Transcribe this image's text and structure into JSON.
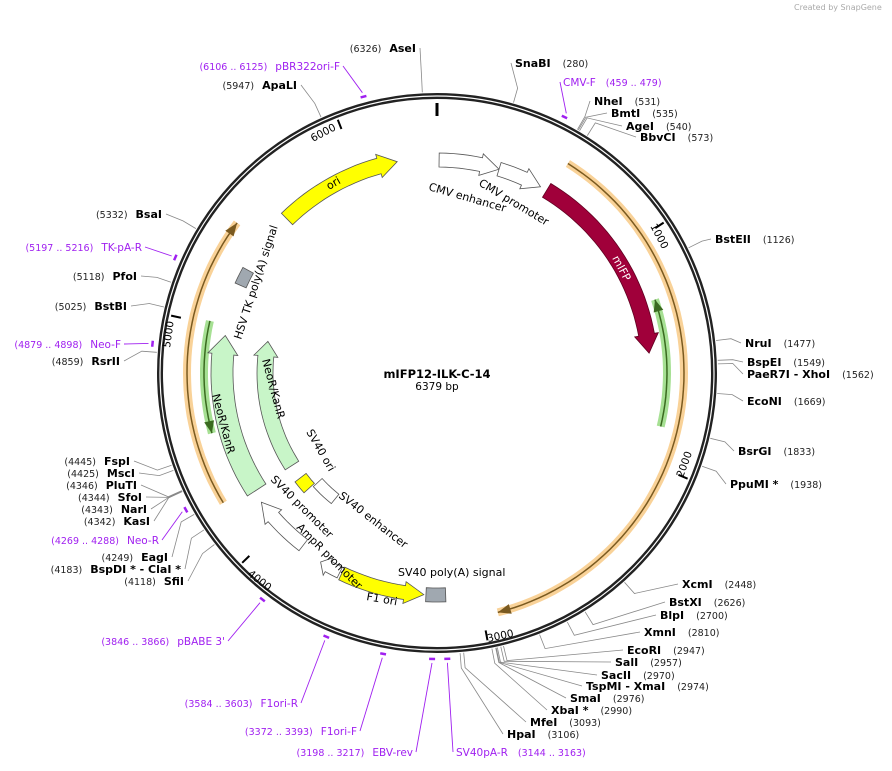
{
  "watermark": "Created by SnapGene",
  "plasmid": {
    "name": "mIFP12-ILK-C-14",
    "length_label": "6379 bp",
    "length": 6379
  },
  "ticks": [
    "1000",
    "2000",
    "3000",
    "4000",
    "5000",
    "6000"
  ],
  "enzymes": [
    {
      "name": "SnaBI",
      "pos": "(280)",
      "bp": 280
    },
    {
      "name": "NheI",
      "pos": "(531)",
      "bp": 531
    },
    {
      "name": "BmtI",
      "pos": "(535)",
      "bp": 535
    },
    {
      "name": "AgeI",
      "pos": "(540)",
      "bp": 540
    },
    {
      "name": "BbvCI",
      "pos": "(573)",
      "bp": 573
    },
    {
      "name": "BstEII",
      "pos": "(1126)",
      "bp": 1126
    },
    {
      "name": "NruI",
      "pos": "(1477)",
      "bp": 1477
    },
    {
      "name": "BspEI",
      "pos": "(1549)",
      "bp": 1549
    },
    {
      "name": "PaeR7I  - XhoI",
      "pos": "(1562)",
      "bp": 1562
    },
    {
      "name": "EcoNI",
      "pos": "(1669)",
      "bp": 1669
    },
    {
      "name": "BsrGI",
      "pos": "(1833)",
      "bp": 1833
    },
    {
      "name": "PpuMI *",
      "pos": "(1938)",
      "bp": 1938
    },
    {
      "name": "XcmI",
      "pos": "(2448)",
      "bp": 2448
    },
    {
      "name": "BstXI",
      "pos": "(2626)",
      "bp": 2626
    },
    {
      "name": "BlpI",
      "pos": "(2700)",
      "bp": 2700
    },
    {
      "name": "XmnI",
      "pos": "(2810)",
      "bp": 2810
    },
    {
      "name": "EcoRI",
      "pos": "(2947)",
      "bp": 2947
    },
    {
      "name": "SalI",
      "pos": "(2957)",
      "bp": 2957
    },
    {
      "name": "SacII",
      "pos": "(2970)",
      "bp": 2970
    },
    {
      "name": "TspMI  - XmaI",
      "pos": "(2974)",
      "bp": 2974
    },
    {
      "name": "SmaI",
      "pos": "(2976)",
      "bp": 2976
    },
    {
      "name": "XbaI *",
      "pos": "(2990)",
      "bp": 2990
    },
    {
      "name": "MfeI",
      "pos": "(3093)",
      "bp": 3093
    },
    {
      "name": "HpaI",
      "pos": "(3106)",
      "bp": 3106
    },
    {
      "name": "SfiI",
      "pos": "(4118)",
      "bp": 4118
    },
    {
      "name": "BspDI *  - ClaI *",
      "pos": "(4183)",
      "bp": 4183
    },
    {
      "name": "EagI",
      "pos": "(4249)",
      "bp": 4249
    },
    {
      "name": "KasI",
      "pos": "(4342)",
      "bp": 4342
    },
    {
      "name": "NarI",
      "pos": "(4343)",
      "bp": 4343
    },
    {
      "name": "SfoI",
      "pos": "(4344)",
      "bp": 4344
    },
    {
      "name": "PluTI",
      "pos": "(4346)",
      "bp": 4346
    },
    {
      "name": "MscI",
      "pos": "(4425)",
      "bp": 4425
    },
    {
      "name": "FspI",
      "pos": "(4445)",
      "bp": 4445
    },
    {
      "name": "RsrII",
      "pos": "(4859)",
      "bp": 4859
    },
    {
      "name": "BstBI",
      "pos": "(5025)",
      "bp": 5025
    },
    {
      "name": "PfoI",
      "pos": "(5118)",
      "bp": 5118
    },
    {
      "name": "BsaI",
      "pos": "(5332)",
      "bp": 5332
    },
    {
      "name": "ApaLI",
      "pos": "(5947)",
      "bp": 5947
    },
    {
      "name": "AseI",
      "pos": "(6326)",
      "bp": 6326
    }
  ],
  "primers": [
    {
      "name": "CMV-F",
      "range": "(459 .. 479)",
      "bp": 469
    },
    {
      "name": "SV40pA-R",
      "range": "(3144 .. 3163)",
      "bp": 3153
    },
    {
      "name": "EBV-rev",
      "range": "(3198 .. 3217)",
      "bp": 3207
    },
    {
      "name": "F1ori-F",
      "range": "(3372 .. 3393)",
      "bp": 3382
    },
    {
      "name": "F1ori-R",
      "range": "(3584 .. 3603)",
      "bp": 3593
    },
    {
      "name": "pBABE 3'",
      "range": "(3846 .. 3866)",
      "bp": 3856
    },
    {
      "name": "Neo-R",
      "range": "(4269 .. 4288)",
      "bp": 4278
    },
    {
      "name": "Neo-F",
      "range": "(4879 .. 4898)",
      "bp": 4888
    },
    {
      "name": "TK-pA-R",
      "range": "(5197 .. 5216)",
      "bp": 5206
    },
    {
      "name": "pBR322ori-F",
      "range": "(6106 .. 6125)",
      "bp": 6115
    }
  ],
  "features": [
    {
      "name": "CMV enhancer",
      "start": 10,
      "end": 300,
      "dir": 1,
      "color": "#ffffff"
    },
    {
      "name": "CMV promoter",
      "start": 300,
      "end": 515,
      "dir": 1,
      "color": "#ffffff"
    },
    {
      "name": "mIFP",
      "start": 549,
      "end": 1500,
      "dir": 1,
      "color": "#a0003a"
    },
    {
      "name": "F1 ori",
      "start": 3250,
      "end": 3640,
      "dir": -1,
      "color": "#ffff00"
    },
    {
      "name": "SV40 poly(A) signal",
      "start": 3150,
      "end": 3240,
      "dir": 0,
      "color": "#a0a8b0"
    },
    {
      "name": "AmpR promoter",
      "start": 3650,
      "end": 3750,
      "dir": 1,
      "color": "#ffffff"
    },
    {
      "name": "SV40 promoter",
      "start": 3860,
      "end": 4140,
      "dir": 1,
      "color": "#ffffff"
    },
    {
      "name": "SV40 enhancer",
      "start": 3880,
      "end": 4030,
      "dir": 0,
      "color": "#ffffff"
    },
    {
      "name": "SV40 ori",
      "start": 4040,
      "end": 4120,
      "dir": 0,
      "color": "#ffff00"
    },
    {
      "name": "NeoR/KanR",
      "start": 4200,
      "end": 4962,
      "dir": 1,
      "color": "#c8f5c8"
    },
    {
      "name": "NeoR/KanR",
      "start": 4208,
      "end": 4972,
      "dir": 1,
      "color": "#c8f5c8"
    },
    {
      "name": "HSV TK poly(A) signal",
      "start": 5210,
      "end": 5290,
      "dir": 0,
      "color": "#a0a8b0"
    },
    {
      "name": "ori",
      "start": 5595,
      "end": 6190,
      "dir": 1,
      "color": "#ffff00"
    }
  ],
  "orfs": [
    {
      "start": 567,
      "end": 2937,
      "dir": 1,
      "color": "#f7c77e"
    },
    {
      "start": 4230,
      "end": 5438,
      "dir": 1,
      "color": "#f7c77e"
    },
    {
      "start": 1265,
      "end": 1833,
      "dir": -1,
      "color": "#90d878"
    },
    {
      "start": 4519,
      "end": 5013,
      "dir": -1,
      "color": "#90d878"
    }
  ]
}
